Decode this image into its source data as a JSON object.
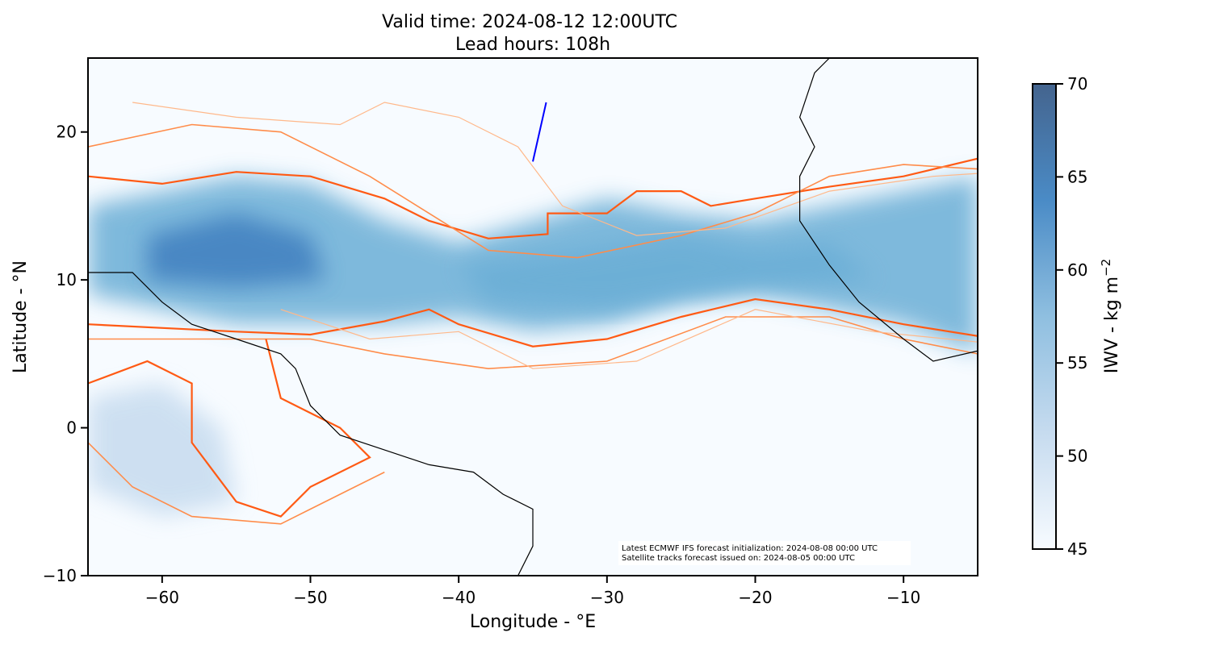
{
  "chart_data": {
    "type": "heatmap",
    "title": [
      "Valid time: 2024-08-12 12:00UTC",
      "Lead hours: 108h"
    ],
    "xlabel": "Longitude - °E",
    "ylabel": "Latitude - °N",
    "xlim": [
      -65,
      -5
    ],
    "ylim": [
      -10,
      25
    ],
    "xticks": [
      -60,
      -50,
      -40,
      -30,
      -20,
      -10
    ],
    "xtick_labels": [
      "−60",
      "−50",
      "−40",
      "−30",
      "−20",
      "−10"
    ],
    "yticks": [
      -10,
      0,
      10,
      20
    ],
    "ytick_labels": [
      "−10",
      "0",
      "10",
      "20"
    ],
    "colorbar": {
      "label": "IWV - kg m",
      "label_sup": "−2",
      "range": [
        45,
        70
      ],
      "ticks": [
        45,
        50,
        55,
        60,
        65,
        70
      ],
      "tick_labels": [
        "45",
        "50",
        "55",
        "60",
        "65",
        "70"
      ],
      "colors": [
        "#f7fbff",
        "#c6dbef",
        "#6baed6",
        "#3f7fbf",
        "#44648e"
      ]
    },
    "annotation": [
      "Latest ECMWF IFS forecast initialization: 2024-08-08 00:00 UTC",
      "Satellite tracks forecast issued on: 2024-08-05 00:00 UTC"
    ],
    "satellite_track": [
      [
        -35,
        18
      ],
      [
        -34.1,
        22
      ]
    ],
    "iwv_regions": [
      {
        "level": 55,
        "poly": [
          [
            -65,
            15
          ],
          [
            -60,
            16
          ],
          [
            -55,
            17
          ],
          [
            -50,
            16.5
          ],
          [
            -45,
            14
          ],
          [
            -40,
            12.5
          ],
          [
            -35,
            14
          ],
          [
            -30,
            15.5
          ],
          [
            -25,
            14.5
          ],
          [
            -20,
            14
          ],
          [
            -15,
            15
          ],
          [
            -10,
            16
          ],
          [
            -5,
            17
          ],
          [
            -5,
            5
          ],
          [
            -10,
            7
          ],
          [
            -15,
            8
          ],
          [
            -20,
            9
          ],
          [
            -25,
            8.5
          ],
          [
            -30,
            7
          ],
          [
            -35,
            6.5
          ],
          [
            -40,
            7.5
          ],
          [
            -45,
            7
          ],
          [
            -50,
            7
          ],
          [
            -55,
            7
          ],
          [
            -60,
            8
          ],
          [
            -65,
            9
          ]
        ]
      },
      {
        "level": 53,
        "poly": [
          [
            -65,
            2
          ],
          [
            -60,
            3
          ],
          [
            -56,
            0
          ],
          [
            -55,
            -5
          ],
          [
            -60,
            -6
          ],
          [
            -65,
            -4
          ]
        ]
      },
      {
        "level": 62,
        "poly": [
          [
            -61,
            13
          ],
          [
            -55,
            14.5
          ],
          [
            -50,
            13
          ],
          [
            -49,
            10
          ],
          [
            -55,
            9.5
          ],
          [
            -61,
            10
          ]
        ]
      },
      {
        "level": 60,
        "poly": [
          [
            -40,
            11
          ],
          [
            -32,
            12
          ],
          [
            -25,
            13
          ],
          [
            -20,
            12
          ],
          [
            -15,
            12.5
          ],
          [
            -12,
            10
          ],
          [
            -20,
            9.5
          ],
          [
            -30,
            8
          ],
          [
            -38,
            8.5
          ]
        ]
      }
    ],
    "contours": [
      {
        "weight": "thick",
        "pts": [
          [
            -65,
            17
          ],
          [
            -60,
            16.5
          ],
          [
            -55,
            17.3
          ],
          [
            -50,
            17
          ],
          [
            -45,
            15.5
          ],
          [
            -42,
            14
          ],
          [
            -38,
            12.8
          ],
          [
            -34,
            13.1
          ],
          [
            -34,
            14.5
          ],
          [
            -30,
            14.5
          ],
          [
            -28,
            16
          ],
          [
            -25,
            16
          ],
          [
            -23,
            15
          ],
          [
            -20,
            15.5
          ],
          [
            -15,
            16.3
          ],
          [
            -10,
            17
          ],
          [
            -5,
            18.2
          ]
        ]
      },
      {
        "weight": "thick",
        "pts": [
          [
            -65,
            7
          ],
          [
            -55,
            6.5
          ],
          [
            -50,
            6.3
          ],
          [
            -45,
            7.2
          ],
          [
            -42,
            8
          ],
          [
            -40,
            7
          ],
          [
            -35,
            5.5
          ],
          [
            -30,
            6
          ],
          [
            -25,
            7.5
          ],
          [
            -20,
            8.7
          ],
          [
            -15,
            8
          ],
          [
            -10,
            7
          ],
          [
            -5,
            6.2
          ]
        ]
      },
      {
        "weight": "medium",
        "pts": [
          [
            -65,
            19
          ],
          [
            -58,
            20.5
          ],
          [
            -52,
            20
          ],
          [
            -46,
            17
          ],
          [
            -42,
            14.5
          ],
          [
            -38,
            12
          ],
          [
            -32,
            11.5
          ],
          [
            -25,
            13
          ],
          [
            -20,
            14.5
          ],
          [
            -15,
            17
          ],
          [
            -10,
            17.8
          ],
          [
            -5,
            17.5
          ]
        ]
      },
      {
        "weight": "medium",
        "pts": [
          [
            -65,
            6
          ],
          [
            -58,
            6
          ],
          [
            -50,
            6
          ],
          [
            -45,
            5
          ],
          [
            -38,
            4
          ],
          [
            -30,
            4.5
          ],
          [
            -22,
            7.5
          ],
          [
            -15,
            7.5
          ],
          [
            -10,
            6
          ],
          [
            -5,
            5
          ]
        ]
      },
      {
        "weight": "thin",
        "pts": [
          [
            -62,
            22
          ],
          [
            -55,
            21
          ],
          [
            -48,
            20.5
          ],
          [
            -45,
            22
          ],
          [
            -40,
            21
          ],
          [
            -36,
            19
          ],
          [
            -33,
            15
          ],
          [
            -28,
            13
          ],
          [
            -22,
            13.5
          ],
          [
            -15,
            16
          ],
          [
            -8,
            17
          ],
          [
            -5,
            17.2
          ]
        ]
      },
      {
        "weight": "thin",
        "pts": [
          [
            -52,
            8
          ],
          [
            -46,
            6
          ],
          [
            -40,
            6.5
          ],
          [
            -35,
            4
          ],
          [
            -28,
            4.5
          ],
          [
            -20,
            8
          ],
          [
            -12,
            6.5
          ],
          [
            -5,
            5.8
          ]
        ]
      },
      {
        "weight": "thick",
        "pts": [
          [
            -65,
            3
          ],
          [
            -61,
            4.5
          ],
          [
            -58,
            3
          ],
          [
            -58,
            -1
          ],
          [
            -55,
            -5
          ],
          [
            -52,
            -6
          ],
          [
            -50,
            -4
          ],
          [
            -46,
            -2
          ],
          [
            -48,
            0
          ],
          [
            -52,
            2
          ],
          [
            -53,
            6
          ]
        ]
      },
      {
        "weight": "medium",
        "pts": [
          [
            -65,
            -1
          ],
          [
            -62,
            -4
          ],
          [
            -58,
            -6
          ],
          [
            -52,
            -6.5
          ],
          [
            -47,
            -4
          ],
          [
            -45,
            -3
          ]
        ]
      }
    ],
    "coastlines": [
      [
        [
          -65,
          10.5
        ],
        [
          -62,
          10.5
        ],
        [
          -60,
          8.5
        ],
        [
          -58,
          7
        ],
        [
          -55,
          6
        ],
        [
          -52,
          5
        ],
        [
          -51,
          4
        ],
        [
          -50,
          1.5
        ],
        [
          -49,
          0.5
        ],
        [
          -48,
          -0.5
        ],
        [
          -45,
          -1.5
        ],
        [
          -42,
          -2.5
        ],
        [
          -39,
          -3
        ],
        [
          -37,
          -4.5
        ],
        [
          -35,
          -5.5
        ],
        [
          -35,
          -8
        ],
        [
          -36,
          -10
        ]
      ],
      [
        [
          -5,
          5.2
        ],
        [
          -8,
          4.5
        ],
        [
          -10,
          6
        ],
        [
          -13,
          8.5
        ],
        [
          -15,
          11
        ],
        [
          -17,
          14
        ],
        [
          -17,
          17
        ],
        [
          -16,
          19
        ],
        [
          -17,
          21
        ],
        [
          -16,
          24
        ],
        [
          -15,
          25
        ]
      ]
    ]
  }
}
